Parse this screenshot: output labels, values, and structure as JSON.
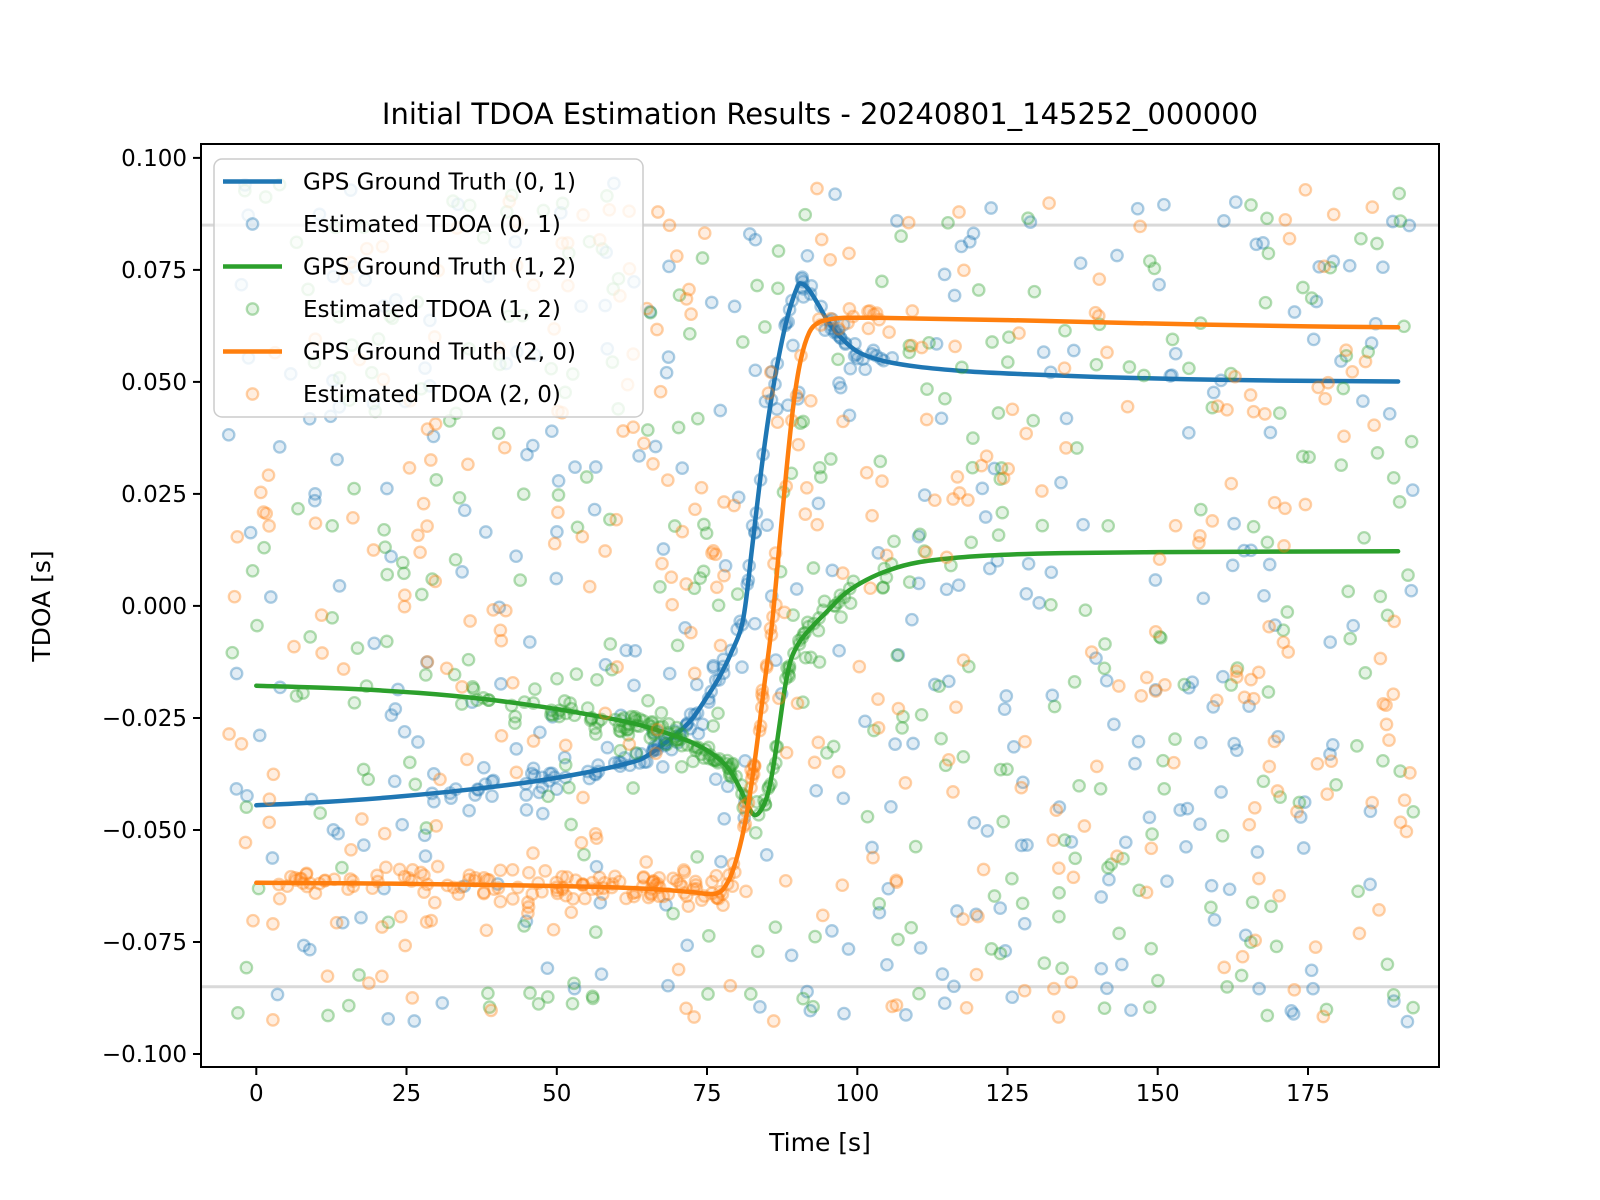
{
  "figure": {
    "title": "Initial TDOA Estimation Results - 20240801_145252_000000",
    "xlabel": "Time [s]",
    "ylabel": "TDOA [s]"
  },
  "chart_data": {
    "type": "scatter",
    "title": "Initial TDOA Estimation Results - 20240801_145252_000000",
    "xlabel": "Time [s]",
    "ylabel": "TDOA [s]",
    "xlim": [
      -9.2,
      196.8
    ],
    "ylim": [
      -0.1029,
      0.1031
    ],
    "grid": false,
    "x_ticks": [
      0,
      25,
      50,
      75,
      100,
      125,
      150,
      175
    ],
    "x_tick_labels": [
      "0",
      "25",
      "50",
      "75",
      "100",
      "125",
      "150",
      "175"
    ],
    "y_ticks": [
      0.1,
      0.075,
      0.05,
      0.025,
      0.0,
      -0.025,
      -0.05,
      -0.075,
      -0.1
    ],
    "y_tick_labels": [
      "0.100",
      "0.075",
      "0.050",
      "0.025",
      "0.000",
      "−0.025",
      "−0.050",
      "−0.075",
      "−0.100"
    ],
    "hlines": {
      "values": [
        0.085,
        -0.085
      ],
      "color": "#d9d9d9"
    },
    "legend": {
      "position": "upper left",
      "entries": [
        {
          "label": "GPS Ground Truth (0, 1)",
          "sample": "line",
          "color": "#1f77b4"
        },
        {
          "label": "Estimated TDOA (0, 1)",
          "sample": "marker",
          "color": "#1f77b4"
        },
        {
          "label": "GPS Ground Truth (1, 2)",
          "sample": "line",
          "color": "#2ca02c"
        },
        {
          "label": "Estimated TDOA (1, 2)",
          "sample": "marker",
          "color": "#2ca02c"
        },
        {
          "label": "GPS Ground Truth (2, 0)",
          "sample": "line",
          "color": "#ff7f0e"
        },
        {
          "label": "Estimated TDOA (2, 0)",
          "sample": "marker",
          "color": "#ff7f0e"
        }
      ]
    },
    "series": [
      {
        "id": "gt-0-1",
        "name": "GPS Ground Truth (0, 1)",
        "type": "line",
        "color": "#1f77b4",
        "points": [
          [
            0,
            -0.0445
          ],
          [
            12,
            -0.0437
          ],
          [
            24,
            -0.0425
          ],
          [
            36,
            -0.0409
          ],
          [
            46,
            -0.0392
          ],
          [
            54,
            -0.0374
          ],
          [
            60,
            -0.0357
          ],
          [
            64,
            -0.0342
          ],
          [
            67,
            -0.0316
          ],
          [
            70,
            -0.0285
          ],
          [
            72.5,
            -0.0252
          ],
          [
            75,
            -0.0203
          ],
          [
            77,
            -0.016
          ],
          [
            79,
            -0.0105
          ],
          [
            81,
            -0.003
          ],
          [
            82.5,
            0.013
          ],
          [
            84,
            0.03
          ],
          [
            85.5,
            0.0445
          ],
          [
            87,
            0.056
          ],
          [
            88.5,
            0.065
          ],
          [
            90,
            0.0711
          ],
          [
            90.8,
            0.0719
          ],
          [
            92,
            0.0705
          ],
          [
            93.5,
            0.0673
          ],
          [
            95,
            0.0638
          ],
          [
            97,
            0.0603
          ],
          [
            100,
            0.0568
          ],
          [
            104,
            0.0548
          ],
          [
            110,
            0.0534
          ],
          [
            118,
            0.0524
          ],
          [
            128,
            0.0517
          ],
          [
            140,
            0.0511
          ],
          [
            155,
            0.0506
          ],
          [
            170,
            0.0503
          ],
          [
            190,
            0.0501
          ]
        ]
      },
      {
        "id": "est-0-1",
        "name": "Estimated TDOA (0, 1)",
        "type": "scatter",
        "color": "#1f77b4",
        "marker": "o",
        "follows": "gt-0-1",
        "cluster": {
          "n": 140,
          "x_range": [
            24,
            107
          ],
          "dense_range": [
            55,
            105
          ],
          "dense_frac": 0.45,
          "sigma_y": 0.0013,
          "loose_frac": 0.16,
          "loose_mult": 3.5,
          "seed": 41
        },
        "outliers": {
          "n": 330,
          "x_range": [
            -5,
            193
          ],
          "y_range": [
            -0.093,
            0.0945
          ],
          "seed": 141
        }
      },
      {
        "id": "gt-1-2",
        "name": "GPS Ground Truth (1, 2)",
        "type": "line",
        "color": "#2ca02c",
        "points": [
          [
            0,
            -0.0178
          ],
          [
            14,
            -0.0184
          ],
          [
            27,
            -0.0194
          ],
          [
            38,
            -0.0208
          ],
          [
            48,
            -0.0226
          ],
          [
            56,
            -0.0244
          ],
          [
            63,
            -0.0263
          ],
          [
            69,
            -0.0287
          ],
          [
            73,
            -0.0308
          ],
          [
            76,
            -0.0331
          ],
          [
            78.5,
            -0.0362
          ],
          [
            80.5,
            -0.0408
          ],
          [
            81.8,
            -0.0446
          ],
          [
            82.8,
            -0.0466
          ],
          [
            83.8,
            -0.0459
          ],
          [
            85,
            -0.0425
          ],
          [
            86,
            -0.0362
          ],
          [
            87,
            -0.0272
          ],
          [
            88,
            -0.018
          ],
          [
            89,
            -0.0118
          ],
          [
            90.5,
            -0.0078
          ],
          [
            92.5,
            -0.0046
          ],
          [
            95,
            -0.0012
          ],
          [
            98,
            0.0028
          ],
          [
            101.5,
            0.0058
          ],
          [
            105.5,
            0.0081
          ],
          [
            110,
            0.0097
          ],
          [
            116,
            0.0107
          ],
          [
            124,
            0.0114
          ],
          [
            134,
            0.0118
          ],
          [
            148,
            0.012
          ],
          [
            165,
            0.0121
          ],
          [
            190,
            0.0122
          ]
        ]
      },
      {
        "id": "est-1-2",
        "name": "Estimated TDOA (1, 2)",
        "type": "scatter",
        "color": "#2ca02c",
        "marker": "o",
        "follows": "gt-1-2",
        "cluster": {
          "n": 155,
          "x_range": [
            33,
            106
          ],
          "dense_range": [
            55,
            95
          ],
          "dense_frac": 0.45,
          "sigma_y": 0.0013,
          "loose_frac": 0.16,
          "loose_mult": 3.5,
          "seed": 42
        },
        "outliers": {
          "n": 330,
          "x_range": [
            -5,
            193
          ],
          "y_range": [
            -0.093,
            0.0945
          ],
          "seed": 142
        }
      },
      {
        "id": "gt-2-0",
        "name": "GPS Ground Truth (2, 0)",
        "type": "line",
        "color": "#ff7f0e",
        "points": [
          [
            0,
            -0.0618
          ],
          [
            15,
            -0.0619
          ],
          [
            30,
            -0.0621
          ],
          [
            45,
            -0.0624
          ],
          [
            57,
            -0.0627
          ],
          [
            66,
            -0.0632
          ],
          [
            72,
            -0.0638
          ],
          [
            76.5,
            -0.0642
          ],
          [
            78.5,
            -0.0615
          ],
          [
            80,
            -0.056
          ],
          [
            81.5,
            -0.0472
          ],
          [
            83,
            -0.034
          ],
          [
            84.5,
            -0.018
          ],
          [
            85.8,
            -0.0042
          ],
          [
            87,
            0.0128
          ],
          [
            88.2,
            0.03
          ],
          [
            89.4,
            0.0452
          ],
          [
            90.6,
            0.055
          ],
          [
            92,
            0.061
          ],
          [
            93.5,
            0.0632
          ],
          [
            95.5,
            0.064
          ],
          [
            98,
            0.0643
          ],
          [
            103,
            0.0643
          ],
          [
            112,
            0.0641
          ],
          [
            125,
            0.0638
          ],
          [
            140,
            0.0633
          ],
          [
            158,
            0.0628
          ],
          [
            175,
            0.0624
          ],
          [
            190,
            0.0622
          ]
        ]
      },
      {
        "id": "est-2-0",
        "name": "Estimated TDOA (2, 0)",
        "type": "scatter",
        "color": "#ff7f0e",
        "marker": "o",
        "follows": "gt-2-0",
        "cluster": {
          "n": 185,
          "x_range": [
            2,
            104
          ],
          "dense_range": [
            35,
            85
          ],
          "dense_frac": 0.4,
          "sigma_y": 0.0018,
          "loose_frac": 0.16,
          "loose_mult": 3.5,
          "seed": 43
        },
        "outliers": {
          "n": 330,
          "x_range": [
            -5,
            193
          ],
          "y_range": [
            -0.093,
            0.0945
          ],
          "seed": 143
        }
      }
    ]
  }
}
